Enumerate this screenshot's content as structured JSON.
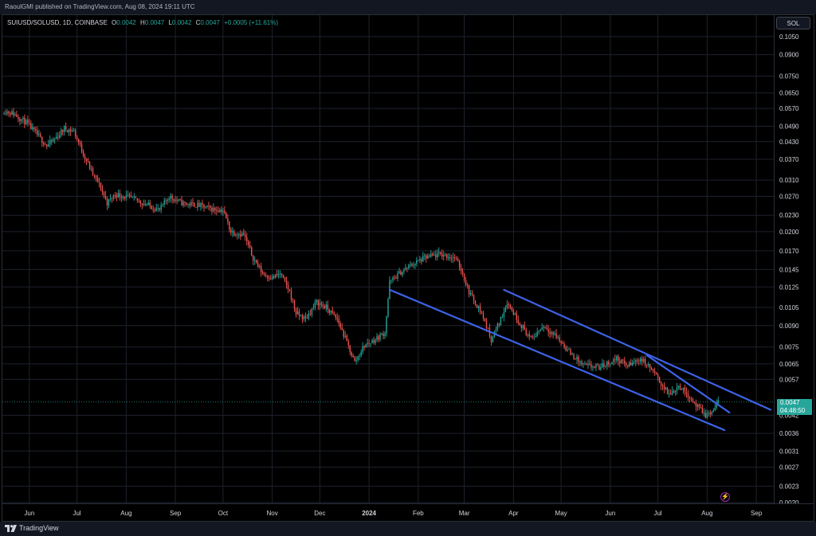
{
  "header": {
    "publisher": "RaoulGMI published on TradingView.com, Aug 08, 2024 19:11 UTC"
  },
  "legend": {
    "symbol": "SUIUSD/SOLUSD, 1D, COINBASE",
    "o_label": "O",
    "o_value": "0.0042",
    "h_label": "H",
    "h_value": "0.0047",
    "l_label": "L",
    "l_value": "0.0042",
    "c_label": "C",
    "c_value": "0.0047",
    "change": "+0.0005 (+11.61%)"
  },
  "scale_button": "SOL",
  "last_price": {
    "value": "0.0047",
    "countdown": "04:48:50"
  },
  "footer": {
    "brand": "TradingView"
  },
  "icons": {
    "alert": "lightning-icon",
    "brand": "tradingview-logo-icon"
  },
  "colors": {
    "up": "#26a69a",
    "down": "#ef5350",
    "channel": "#3d63e8",
    "background": "#000000",
    "grid": "#1e222d",
    "text": "#d1d4dc"
  },
  "chart_data": {
    "type": "candlestick",
    "title": "SUIUSD/SOLUSD, 1D, COINBASE",
    "y_scale": "log",
    "ylim": [
      0.002,
      0.11
    ],
    "y_ticks": [
      "0.1050",
      "0.0900",
      "0.0750",
      "0.0650",
      "0.0570",
      "0.0490",
      "0.0430",
      "0.0370",
      "0.0310",
      "0.0270",
      "0.0230",
      "0.0200",
      "0.0170",
      "0.0145",
      "0.0125",
      "0.0105",
      "0.0090",
      "0.0075",
      "0.0065",
      "0.0057",
      "0.0042",
      "0.0036",
      "0.0031",
      "0.0027",
      "0.0023",
      "0.0020"
    ],
    "x_ticks": [
      "Jun",
      "Jul",
      "Aug",
      "Sep",
      "Oct",
      "Nov",
      "Dec",
      "2024",
      "Feb",
      "Mar",
      "Apr",
      "May",
      "Jun",
      "Jul",
      "Aug",
      "Sep"
    ],
    "x_tick_dates": [
      "2023-06-01",
      "2023-07-01",
      "2023-08-01",
      "2023-09-01",
      "2023-10-01",
      "2023-11-01",
      "2023-12-01",
      "2024-01-01",
      "2024-02-01",
      "2024-03-01",
      "2024-04-01",
      "2024-05-01",
      "2024-06-01",
      "2024-07-01",
      "2024-08-01",
      "2024-09-01"
    ],
    "x_range": [
      "2023-05-15",
      "2024-09-12"
    ],
    "price_path": [
      {
        "date": "2023-05-16",
        "close": 0.056
      },
      {
        "date": "2023-05-22",
        "close": 0.0545
      },
      {
        "date": "2023-05-30",
        "close": 0.0505
      },
      {
        "date": "2023-06-06",
        "close": 0.0455
      },
      {
        "date": "2023-06-12",
        "close": 0.0415
      },
      {
        "date": "2023-06-17",
        "close": 0.044
      },
      {
        "date": "2023-06-23",
        "close": 0.048
      },
      {
        "date": "2023-06-29",
        "close": 0.047
      },
      {
        "date": "2023-07-04",
        "close": 0.04
      },
      {
        "date": "2023-07-10",
        "close": 0.0335
      },
      {
        "date": "2023-07-16",
        "close": 0.029
      },
      {
        "date": "2023-07-20",
        "close": 0.0255
      },
      {
        "date": "2023-07-25",
        "close": 0.0275
      },
      {
        "date": "2023-08-05",
        "close": 0.0265
      },
      {
        "date": "2023-08-15",
        "close": 0.025
      },
      {
        "date": "2023-08-22",
        "close": 0.024
      },
      {
        "date": "2023-08-28",
        "close": 0.027
      },
      {
        "date": "2023-09-05",
        "close": 0.0255
      },
      {
        "date": "2023-09-15",
        "close": 0.025
      },
      {
        "date": "2023-09-25",
        "close": 0.0242
      },
      {
        "date": "2023-10-01",
        "close": 0.024
      },
      {
        "date": "2023-10-06",
        "close": 0.02
      },
      {
        "date": "2023-10-14",
        "close": 0.0195
      },
      {
        "date": "2023-10-20",
        "close": 0.016
      },
      {
        "date": "2023-10-26",
        "close": 0.014
      },
      {
        "date": "2023-11-01",
        "close": 0.0135
      },
      {
        "date": "2023-11-06",
        "close": 0.014
      },
      {
        "date": "2023-11-12",
        "close": 0.012
      },
      {
        "date": "2023-11-16",
        "close": 0.01
      },
      {
        "date": "2023-11-22",
        "close": 0.0095
      },
      {
        "date": "2023-11-29",
        "close": 0.011
      },
      {
        "date": "2023-12-05",
        "close": 0.0105
      },
      {
        "date": "2023-12-12",
        "close": 0.0095
      },
      {
        "date": "2023-12-18",
        "close": 0.0078
      },
      {
        "date": "2023-12-23",
        "close": 0.0066
      },
      {
        "date": "2023-12-29",
        "close": 0.0076
      },
      {
        "date": "2024-01-05",
        "close": 0.008
      },
      {
        "date": "2024-01-11",
        "close": 0.0085
      },
      {
        "date": "2024-01-14",
        "close": 0.013
      },
      {
        "date": "2024-01-20",
        "close": 0.014
      },
      {
        "date": "2024-01-27",
        "close": 0.015
      },
      {
        "date": "2024-02-05",
        "close": 0.016
      },
      {
        "date": "2024-02-15",
        "close": 0.0165
      },
      {
        "date": "2024-02-24",
        "close": 0.016
      },
      {
        "date": "2024-02-28",
        "close": 0.0145
      },
      {
        "date": "2024-03-04",
        "close": 0.012
      },
      {
        "date": "2024-03-12",
        "close": 0.01
      },
      {
        "date": "2024-03-18",
        "close": 0.008
      },
      {
        "date": "2024-03-24",
        "close": 0.0095
      },
      {
        "date": "2024-03-28",
        "close": 0.011
      },
      {
        "date": "2024-04-05",
        "close": 0.0092
      },
      {
        "date": "2024-04-12",
        "close": 0.008
      },
      {
        "date": "2024-04-20",
        "close": 0.009
      },
      {
        "date": "2024-04-28",
        "close": 0.0082
      },
      {
        "date": "2024-05-06",
        "close": 0.0072
      },
      {
        "date": "2024-05-15",
        "close": 0.0064
      },
      {
        "date": "2024-05-25",
        "close": 0.0063
      },
      {
        "date": "2024-06-05",
        "close": 0.0068
      },
      {
        "date": "2024-06-12",
        "close": 0.0064
      },
      {
        "date": "2024-06-20",
        "close": 0.0068
      },
      {
        "date": "2024-06-27",
        "close": 0.0062
      },
      {
        "date": "2024-07-03",
        "close": 0.0055
      },
      {
        "date": "2024-07-08",
        "close": 0.005
      },
      {
        "date": "2024-07-14",
        "close": 0.0054
      },
      {
        "date": "2024-07-20",
        "close": 0.005
      },
      {
        "date": "2024-07-26",
        "close": 0.0045
      },
      {
        "date": "2024-07-31",
        "close": 0.0042
      },
      {
        "date": "2024-08-04",
        "close": 0.0043
      },
      {
        "date": "2024-08-08",
        "close": 0.0047
      }
    ],
    "annotations": [
      {
        "type": "trendline",
        "label": "channel-lower",
        "start": {
          "date": "2024-01-14",
          "price": 0.0122
        },
        "end": {
          "date": "2024-08-12",
          "price": 0.0037
        }
      },
      {
        "type": "trendline",
        "label": "channel-upper",
        "start": {
          "date": "2024-03-26",
          "price": 0.0122
        },
        "end": {
          "date": "2024-09-10",
          "price": 0.0044
        }
      },
      {
        "type": "trendline",
        "label": "short-term-resistance",
        "start": {
          "date": "2024-06-24",
          "price": 0.007
        },
        "end": {
          "date": "2024-08-15",
          "price": 0.0043
        }
      }
    ],
    "grid": true,
    "legend_position": "top-left"
  }
}
